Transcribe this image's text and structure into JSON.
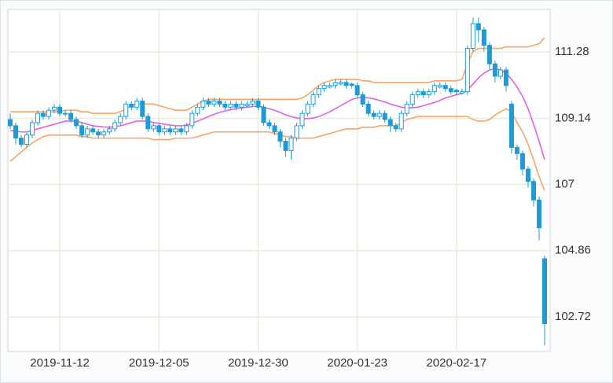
{
  "chart_data": {
    "type": "candlestick",
    "categories": [
      null,
      null,
      null,
      null,
      null,
      null,
      null,
      null,
      null,
      "2019-11-12",
      null,
      null,
      null,
      null,
      null,
      null,
      null,
      null,
      null,
      null,
      null,
      null,
      null,
      null,
      null,
      null,
      null,
      "2019-12-05",
      null,
      null,
      null,
      null,
      null,
      null,
      null,
      null,
      null,
      null,
      null,
      null,
      null,
      null,
      null,
      null,
      null,
      "2019-12-30",
      null,
      null,
      null,
      null,
      null,
      null,
      null,
      null,
      null,
      null,
      null,
      null,
      null,
      null,
      null,
      null,
      null,
      "2020-01-23",
      null,
      null,
      null,
      null,
      null,
      null,
      null,
      null,
      null,
      null,
      null,
      null,
      null,
      null,
      null,
      null,
      null,
      "2020-02-17",
      null,
      null,
      null,
      null,
      null,
      null,
      null,
      null,
      null,
      null,
      null,
      null,
      null,
      null,
      null,
      null
    ],
    "open": [
      109.1,
      108.9,
      108.5,
      108.3,
      108.6,
      109.0,
      109.3,
      109.2,
      109.4,
      109.5,
      109.3,
      109.3,
      109.1,
      108.9,
      108.6,
      108.8,
      108.7,
      108.6,
      108.7,
      108.8,
      109.0,
      109.2,
      109.6,
      109.5,
      109.7,
      109.2,
      108.8,
      108.9,
      108.7,
      108.8,
      108.7,
      108.8,
      108.7,
      108.9,
      109.3,
      109.5,
      109.7,
      109.6,
      109.7,
      109.6,
      109.5,
      109.6,
      109.5,
      109.55,
      109.6,
      109.7,
      109.5,
      109.0,
      108.9,
      108.7,
      108.4,
      108.1,
      108.5,
      108.9,
      109.3,
      109.6,
      109.9,
      110.1,
      110.15,
      110.2,
      110.25,
      110.3,
      110.25,
      110.2,
      109.9,
      109.6,
      109.3,
      109.2,
      109.3,
      109.1,
      108.9,
      108.8,
      109.3,
      109.6,
      109.9,
      110.0,
      109.9,
      110.0,
      110.15,
      110.2,
      110.1,
      110.05,
      109.95,
      110.0,
      111.4,
      112.2,
      112.0,
      111.5,
      110.9,
      110.5,
      110.7,
      109.6,
      108.2,
      108.0,
      107.5,
      107.1,
      106.5,
      104.6
    ],
    "high": [
      109.3,
      109.0,
      108.6,
      108.7,
      109.1,
      109.4,
      109.4,
      109.5,
      109.6,
      109.6,
      109.4,
      109.4,
      109.2,
      109.0,
      108.9,
      108.9,
      108.8,
      108.8,
      108.9,
      109.1,
      109.3,
      109.7,
      109.7,
      109.8,
      109.8,
      109.3,
      109.0,
      109.0,
      108.9,
      108.9,
      108.9,
      108.9,
      109.0,
      109.4,
      109.6,
      109.8,
      109.8,
      109.8,
      109.8,
      109.7,
      109.7,
      109.7,
      109.7,
      109.7,
      109.8,
      109.8,
      109.6,
      109.1,
      109.0,
      108.8,
      108.5,
      108.6,
      109.0,
      109.4,
      109.7,
      110.0,
      110.2,
      110.3,
      110.3,
      110.4,
      110.4,
      110.4,
      110.3,
      110.3,
      110.0,
      109.7,
      109.4,
      109.4,
      109.4,
      109.2,
      109.0,
      109.4,
      109.7,
      110.0,
      110.1,
      110.1,
      110.1,
      110.3,
      110.3,
      110.3,
      110.2,
      110.1,
      110.1,
      111.5,
      112.4,
      112.4,
      112.1,
      111.6,
      111.0,
      110.8,
      110.8,
      109.7,
      108.3,
      108.1,
      107.6,
      107.2,
      106.6,
      104.7
    ],
    "low": [
      108.8,
      108.3,
      108.2,
      108.2,
      108.5,
      108.9,
      109.1,
      109.1,
      109.3,
      109.2,
      109.2,
      109.0,
      108.8,
      108.5,
      108.5,
      108.6,
      108.5,
      108.5,
      108.6,
      108.7,
      108.9,
      109.1,
      109.4,
      109.4,
      109.1,
      108.7,
      108.7,
      108.6,
      108.6,
      108.6,
      108.6,
      108.6,
      108.6,
      108.8,
      109.2,
      109.4,
      109.5,
      109.5,
      109.5,
      109.4,
      109.4,
      109.4,
      109.4,
      109.5,
      109.5,
      109.4,
      108.9,
      108.8,
      108.6,
      108.2,
      107.9,
      107.8,
      108.4,
      108.8,
      109.2,
      109.5,
      109.8,
      110.0,
      110.1,
      110.1,
      110.2,
      110.1,
      110.1,
      109.8,
      109.5,
      109.2,
      109.1,
      109.1,
      109.0,
      108.7,
      108.7,
      108.7,
      109.2,
      109.5,
      109.8,
      109.8,
      109.8,
      109.9,
      110.1,
      110.0,
      109.9,
      109.9,
      109.9,
      109.9,
      111.3,
      111.6,
      111.3,
      110.7,
      110.3,
      110.4,
      110.0,
      108.0,
      107.8,
      107.3,
      106.9,
      106.3,
      105.2,
      101.8
    ],
    "close": [
      108.9,
      108.5,
      108.3,
      108.6,
      109.0,
      109.3,
      109.2,
      109.4,
      109.5,
      109.3,
      109.3,
      109.1,
      108.9,
      108.6,
      108.8,
      108.7,
      108.6,
      108.7,
      108.8,
      109.0,
      109.2,
      109.6,
      109.5,
      109.7,
      109.2,
      108.8,
      108.9,
      108.7,
      108.8,
      108.7,
      108.8,
      108.7,
      108.9,
      109.3,
      109.5,
      109.7,
      109.6,
      109.7,
      109.6,
      109.5,
      109.6,
      109.5,
      109.6,
      109.6,
      109.7,
      109.5,
      109.0,
      108.9,
      108.7,
      108.4,
      108.1,
      108.5,
      108.9,
      109.3,
      109.6,
      109.9,
      110.1,
      110.2,
      110.2,
      110.3,
      110.3,
      110.2,
      110.2,
      109.9,
      109.6,
      109.3,
      109.2,
      109.3,
      109.1,
      108.9,
      108.8,
      109.3,
      109.6,
      109.9,
      110.0,
      109.9,
      110.0,
      110.2,
      110.2,
      110.1,
      110.0,
      110.0,
      110.0,
      111.4,
      112.2,
      112.0,
      111.5,
      110.9,
      110.5,
      110.7,
      110.2,
      108.2,
      108.0,
      107.5,
      107.1,
      106.5,
      105.6,
      102.5
    ],
    "up_color": "#ffffff",
    "down_color": "#1e9ad6",
    "border_color": "#1e9ad6",
    "lines": [
      {
        "color": "#e35fe3",
        "values": [
          108.75,
          108.72,
          108.7,
          108.7,
          108.75,
          108.8,
          108.85,
          108.9,
          108.95,
          109.0,
          109.05,
          109.05,
          109.05,
          109.0,
          108.95,
          108.9,
          108.88,
          108.86,
          108.85,
          108.87,
          108.9,
          108.95,
          109.0,
          109.05,
          109.05,
          109.05,
          109.0,
          108.98,
          108.95,
          108.92,
          108.9,
          108.9,
          108.92,
          108.98,
          109.05,
          109.12,
          109.2,
          109.27,
          109.33,
          109.38,
          109.42,
          109.45,
          109.48,
          109.5,
          109.52,
          109.53,
          109.5,
          109.45,
          109.4,
          109.33,
          109.25,
          109.2,
          109.15,
          109.13,
          109.13,
          109.15,
          109.2,
          109.27,
          109.35,
          109.45,
          109.55,
          109.65,
          109.75,
          109.8,
          109.82,
          109.8,
          109.77,
          109.72,
          109.67,
          109.6,
          109.55,
          109.5,
          109.48,
          109.48,
          109.5,
          109.55,
          109.6,
          109.65,
          109.72,
          109.8,
          109.85,
          109.9,
          109.95,
          110.05,
          110.25,
          110.45,
          110.6,
          110.7,
          110.75,
          110.7,
          110.6,
          110.4,
          110.15,
          109.85,
          109.45,
          108.95,
          108.4,
          107.8
        ]
      },
      {
        "color": "#f8a465",
        "values": [
          109.35,
          109.35,
          109.35,
          109.35,
          109.35,
          109.35,
          109.35,
          109.35,
          109.35,
          109.35,
          109.4,
          109.4,
          109.4,
          109.35,
          109.35,
          109.3,
          109.3,
          109.3,
          109.3,
          109.3,
          109.35,
          109.45,
          109.55,
          109.6,
          109.6,
          109.6,
          109.6,
          109.55,
          109.5,
          109.45,
          109.4,
          109.4,
          109.4,
          109.5,
          109.6,
          109.7,
          109.75,
          109.75,
          109.75,
          109.75,
          109.75,
          109.75,
          109.75,
          109.75,
          109.75,
          109.75,
          109.75,
          109.75,
          109.75,
          109.75,
          109.75,
          109.75,
          109.75,
          109.8,
          109.9,
          110.05,
          110.2,
          110.3,
          110.35,
          110.4,
          110.4,
          110.4,
          110.4,
          110.4,
          110.35,
          110.35,
          110.3,
          110.3,
          110.3,
          110.3,
          110.3,
          110.3,
          110.3,
          110.3,
          110.3,
          110.3,
          110.3,
          110.35,
          110.35,
          110.35,
          110.35,
          110.35,
          110.4,
          110.9,
          111.3,
          111.4,
          111.4,
          111.4,
          111.4,
          111.4,
          111.45,
          111.45,
          111.45,
          111.45,
          111.45,
          111.5,
          111.55,
          111.75
        ]
      },
      {
        "color": "#f8a465",
        "values": [
          107.75,
          107.9,
          108.05,
          108.2,
          108.35,
          108.45,
          108.55,
          108.6,
          108.6,
          108.6,
          108.6,
          108.6,
          108.6,
          108.55,
          108.55,
          108.5,
          108.5,
          108.5,
          108.5,
          108.5,
          108.5,
          108.5,
          108.5,
          108.5,
          108.5,
          108.5,
          108.45,
          108.45,
          108.45,
          108.45,
          108.5,
          108.5,
          108.5,
          108.5,
          108.55,
          108.6,
          108.65,
          108.7,
          108.7,
          108.7,
          108.7,
          108.7,
          108.7,
          108.7,
          108.7,
          108.7,
          108.7,
          108.7,
          108.65,
          108.6,
          108.55,
          108.55,
          108.5,
          108.5,
          108.5,
          108.5,
          108.55,
          108.6,
          108.65,
          108.7,
          108.75,
          108.8,
          108.8,
          108.8,
          108.85,
          108.85,
          108.85,
          108.9,
          108.9,
          108.9,
          108.9,
          109.0,
          109.1,
          109.15,
          109.2,
          109.2,
          109.2,
          109.2,
          109.2,
          109.2,
          109.2,
          109.2,
          109.2,
          109.2,
          109.1,
          109.05,
          109.05,
          109.1,
          109.25,
          109.35,
          109.45,
          109.35,
          109.0,
          108.7,
          108.3,
          107.8,
          107.25,
          106.8
        ]
      }
    ],
    "ylim": [
      101.6,
      112.66
    ],
    "yticks": [
      102.72,
      104.86,
      107,
      109.14,
      111.28
    ],
    "grid": true
  }
}
